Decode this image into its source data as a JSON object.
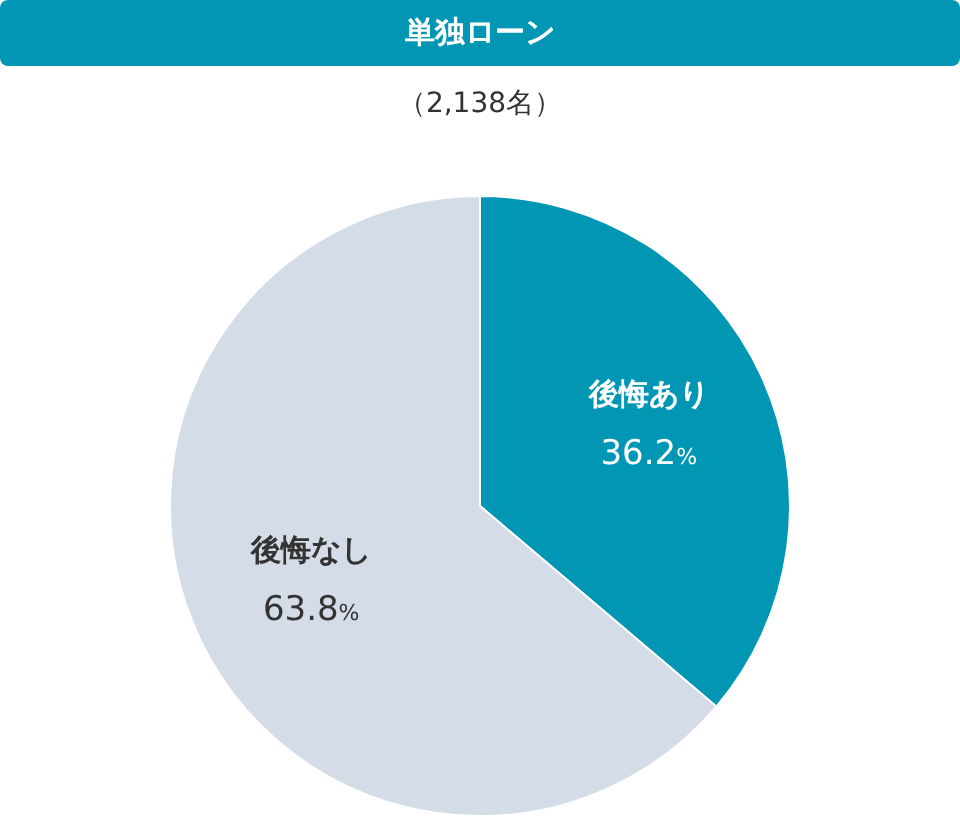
{
  "chart_data": {
    "type": "pie",
    "title": "単独ローン",
    "subtitle": "（2,138名）",
    "categories": [
      "後悔あり",
      "後悔なし"
    ],
    "values": [
      36.2,
      63.8
    ],
    "colors": [
      "#0096b4",
      "#d3dce7"
    ],
    "value_labels": [
      "36.2%",
      "63.8%"
    ]
  }
}
